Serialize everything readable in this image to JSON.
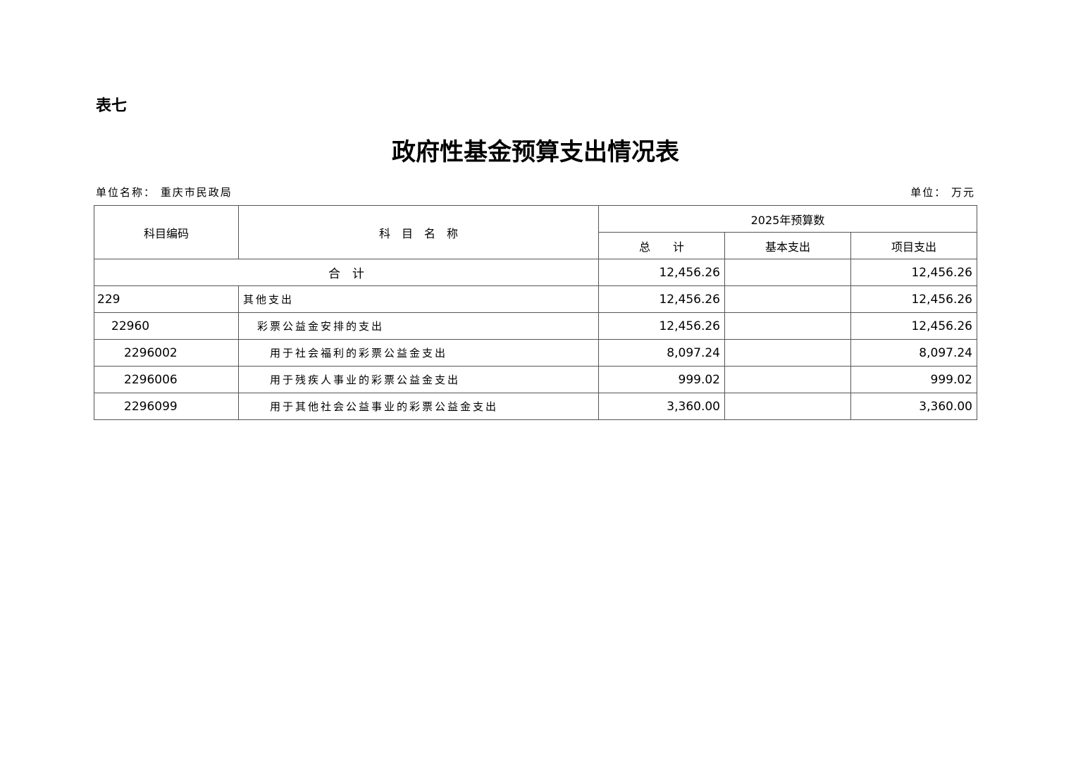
{
  "table_label": "表七",
  "title": "政府性基金预算支出情况表",
  "unit_name": "单位名称： 重庆市民政局",
  "unit": "单位： 万元",
  "headers": {
    "code": "科目编码",
    "name": "科　目　名　称",
    "budget": "2025年预算数",
    "total": "总　　计",
    "basic": "基本支出",
    "project": "项目支出"
  },
  "total_row": {
    "label": "合　计",
    "total": "12,456.26",
    "basic": "",
    "project": "12,456.26"
  },
  "rows": [
    {
      "code": "229",
      "name": "其他支出",
      "total": "12,456.26",
      "basic": "",
      "project": "12,456.26",
      "level": 0
    },
    {
      "code": "22960",
      "name": "彩票公益金安排的支出",
      "total": "12,456.26",
      "basic": "",
      "project": "12,456.26",
      "level": 1
    },
    {
      "code": "2296002",
      "name": "用于社会福利的彩票公益金支出",
      "total": "8,097.24",
      "basic": "",
      "project": "8,097.24",
      "level": 2
    },
    {
      "code": "2296006",
      "name": "用于残疾人事业的彩票公益金支出",
      "total": "999.02",
      "basic": "",
      "project": "999.02",
      "level": 2
    },
    {
      "code": "2296099",
      "name": "用于其他社会公益事业的彩票公益金支出",
      "total": "3,360.00",
      "basic": "",
      "project": "3,360.00",
      "level": 2
    }
  ]
}
